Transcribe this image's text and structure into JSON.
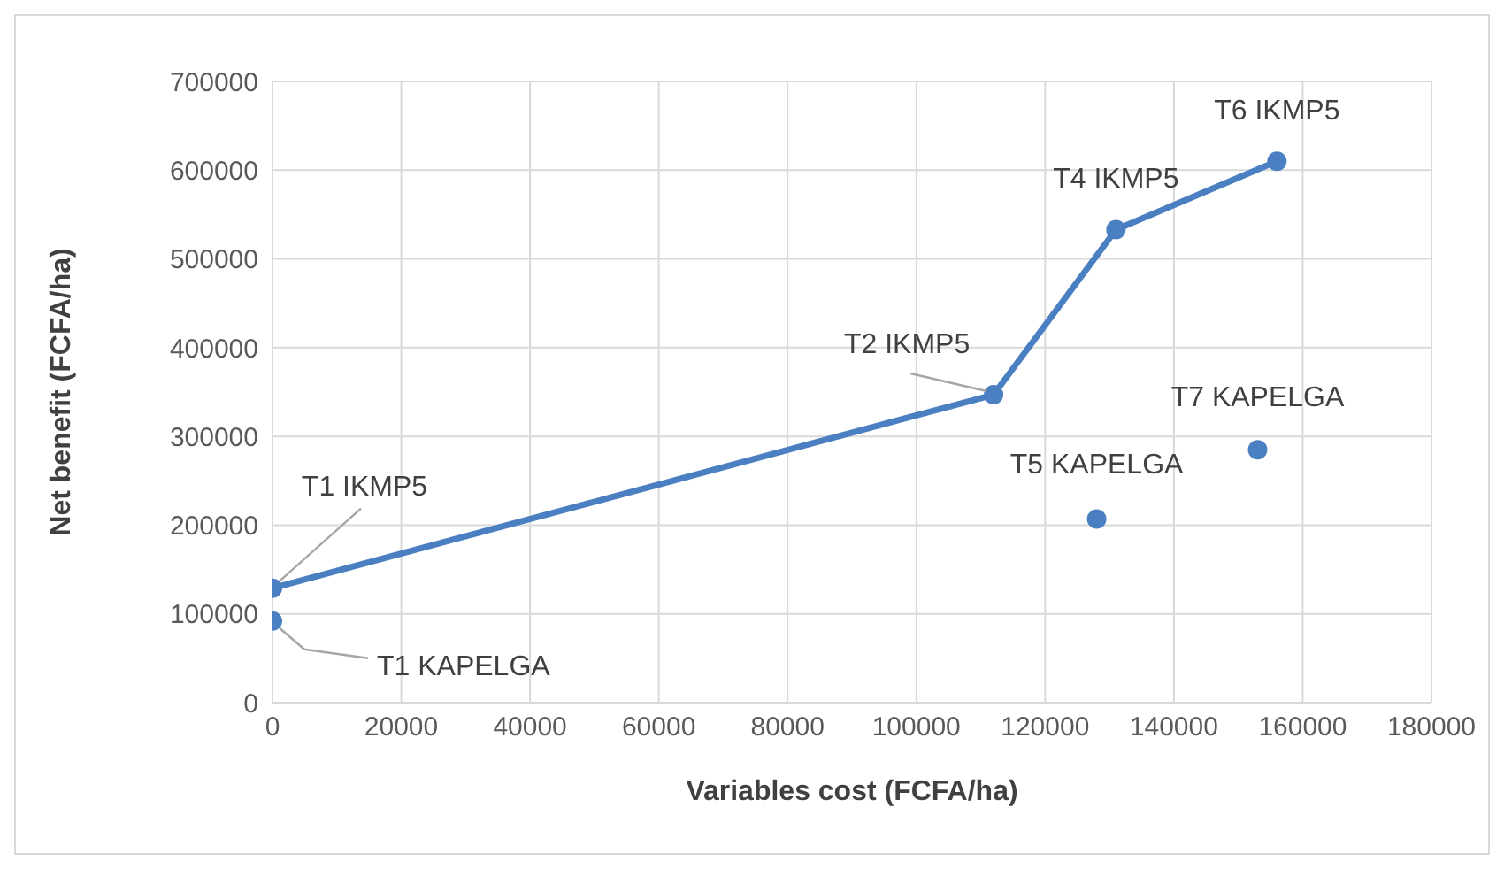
{
  "chart_data": {
    "type": "line",
    "xlabel": "Variables cost (FCFA/ha)",
    "ylabel": "Net benefit (FCFA/ha)",
    "xlim": [
      0,
      180000
    ],
    "xticks": [
      0,
      20000,
      40000,
      60000,
      80000,
      100000,
      120000,
      140000,
      160000,
      180000
    ],
    "ylim": [
      0,
      700000
    ],
    "yticks": [
      0,
      100000,
      200000,
      300000,
      400000,
      500000,
      600000,
      700000
    ],
    "grid": true,
    "legend": false,
    "marker": "circle",
    "line_style": "solid",
    "series": [
      {
        "color": "#4a7fc1",
        "x": [
          0,
          112000,
          131000,
          156000
        ],
        "values": [
          129000,
          347000,
          533000,
          610000
        ]
      },
      {
        "type": "scatter",
        "color": "#4a7fc1",
        "x": [
          0,
          128000,
          153000
        ],
        "values": [
          92000,
          207000,
          285000
        ]
      }
    ],
    "annotations": [
      {
        "text": "T1 IKMP5",
        "x": 0,
        "y": 129000
      },
      {
        "text": "T1 KAPELGA",
        "x": 0,
        "y": 92000
      },
      {
        "text": "T2 IKMP5",
        "x": 112000,
        "y": 347000
      },
      {
        "text": "T4 IKMP5",
        "x": 131000,
        "y": 533000
      },
      {
        "text": "T6 IKMP5",
        "x": 156000,
        "y": 610000
      },
      {
        "text": "T5 KAPELGA",
        "x": 128000,
        "y": 207000
      },
      {
        "text": "T7 KAPELGA",
        "x": 153000,
        "y": 285000
      }
    ]
  }
}
